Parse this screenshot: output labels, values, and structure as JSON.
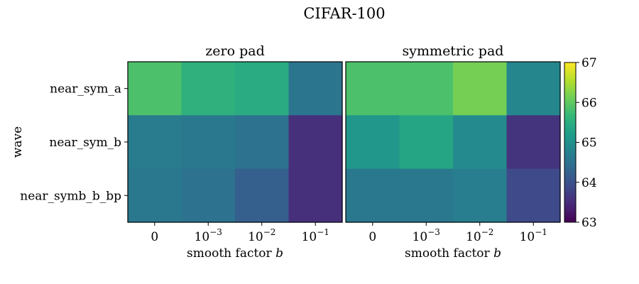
{
  "figure": {
    "title": "CIFAR-100"
  },
  "colorbar": {
    "min": 63,
    "max": 67,
    "ticks": [
      "63",
      "64",
      "65",
      "66",
      "67"
    ],
    "colormap": "viridis"
  },
  "chart_data": [
    {
      "type": "heatmap",
      "title": "zero pad",
      "xlabel": "smooth factor b",
      "ylabel": "wave",
      "x_categories": [
        "0",
        "1e-3",
        "1e-2",
        "1e-1"
      ],
      "y_categories": [
        "near_sym_a",
        "near_sym_b",
        "near_symb_b_bp"
      ],
      "values": [
        [
          65.85,
          65.55,
          65.45,
          64.55
        ],
        [
          64.65,
          64.6,
          64.5,
          63.55
        ],
        [
          64.6,
          64.5,
          64.2,
          63.55
        ]
      ]
    },
    {
      "type": "heatmap",
      "title": "symmetric pad",
      "xlabel": "smooth factor b",
      "ylabel": "",
      "x_categories": [
        "0",
        "1e-3",
        "1e-2",
        "1e-1"
      ],
      "y_categories": [
        "near_sym_a",
        "near_sym_b",
        "near_symb_b_bp"
      ],
      "values": [
        [
          65.85,
          65.85,
          66.15,
          64.85
        ],
        [
          65.1,
          65.35,
          64.9,
          63.6
        ],
        [
          64.6,
          64.6,
          64.7,
          63.9
        ]
      ]
    }
  ]
}
